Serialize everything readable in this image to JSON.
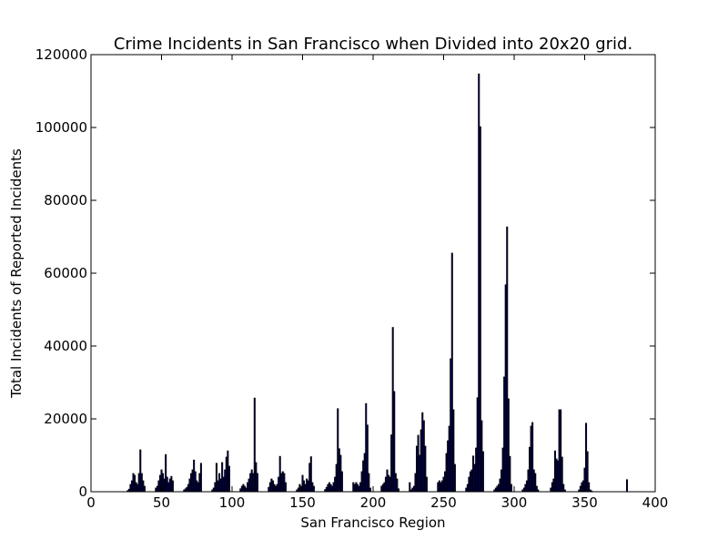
{
  "colors": {
    "bar_fill": "#00008b",
    "bar_edge": "#000000",
    "background": "#ffffff",
    "axis": "#000000"
  },
  "chart_data": {
    "type": "bar",
    "title": "Crime Incidents in San Francisco when Divided into 20x20 grid.",
    "xlabel": "San Francisco Region",
    "ylabel": "Total Incidents of Reported Incidents",
    "xlim": [
      0,
      400
    ],
    "ylim": [
      0,
      120000
    ],
    "x_ticks": [
      "0",
      "50",
      "100",
      "150",
      "200",
      "250",
      "300",
      "350",
      "400"
    ],
    "y_ticks": [
      "0",
      "20000",
      "40000",
      "60000",
      "80000",
      "100000",
      "120000"
    ],
    "grid": false,
    "legend": "none",
    "x": [
      26,
      27,
      28,
      29,
      30,
      31,
      32,
      33,
      34,
      35,
      36,
      37,
      38,
      46,
      47,
      48,
      49,
      50,
      51,
      52,
      53,
      54,
      55,
      56,
      57,
      58,
      66,
      67,
      68,
      69,
      70,
      71,
      72,
      73,
      74,
      75,
      76,
      77,
      78,
      86,
      87,
      88,
      89,
      90,
      91,
      92,
      93,
      94,
      95,
      96,
      97,
      98,
      106,
      107,
      108,
      109,
      110,
      111,
      112,
      113,
      114,
      115,
      116,
      117,
      118,
      126,
      127,
      128,
      129,
      130,
      131,
      132,
      133,
      134,
      135,
      136,
      137,
      138,
      146,
      147,
      148,
      149,
      150,
      151,
      152,
      153,
      154,
      155,
      156,
      157,
      158,
      166,
      167,
      168,
      169,
      170,
      171,
      172,
      173,
      174,
      175,
      176,
      177,
      178,
      186,
      187,
      188,
      189,
      190,
      191,
      192,
      193,
      194,
      195,
      196,
      197,
      198,
      206,
      207,
      208,
      209,
      210,
      211,
      212,
      213,
      214,
      215,
      216,
      217,
      218,
      226,
      227,
      228,
      229,
      230,
      231,
      232,
      233,
      234,
      235,
      236,
      237,
      238,
      246,
      247,
      248,
      249,
      250,
      251,
      252,
      253,
      254,
      255,
      256,
      257,
      258,
      266,
      267,
      268,
      269,
      270,
      271,
      272,
      273,
      274,
      275,
      276,
      277,
      278,
      286,
      287,
      288,
      289,
      290,
      291,
      292,
      293,
      294,
      295,
      296,
      297,
      298,
      306,
      307,
      308,
      309,
      310,
      311,
      312,
      313,
      314,
      315,
      316,
      317,
      326,
      327,
      328,
      329,
      330,
      331,
      332,
      333,
      334,
      335,
      336,
      346,
      347,
      348,
      349,
      350,
      351,
      352,
      353,
      354,
      355,
      380
    ],
    "values": [
      300,
      700,
      2000,
      3000,
      5000,
      4500,
      2500,
      2000,
      5000,
      11500,
      5000,
      3000,
      1500,
      1000,
      1500,
      3000,
      4500,
      6000,
      5000,
      3500,
      10200,
      4000,
      2500,
      3500,
      4200,
      3000,
      500,
      800,
      1200,
      2000,
      3500,
      5000,
      6000,
      8700,
      5500,
      3000,
      2500,
      5000,
      7800,
      500,
      1000,
      2500,
      7800,
      3000,
      5000,
      3500,
      8000,
      4000,
      6000,
      9500,
      11200,
      7000,
      800,
      1500,
      2000,
      1500,
      1000,
      2500,
      3500,
      5000,
      6000,
      5000,
      25700,
      8000,
      5000,
      1200,
      2500,
      3500,
      3000,
      2000,
      1500,
      2000,
      4000,
      9700,
      5000,
      5500,
      5000,
      2500,
      500,
      1000,
      2000,
      1500,
      4500,
      3000,
      2000,
      3500,
      3000,
      7800,
      9600,
      2500,
      1500,
      600,
      1200,
      2000,
      2500,
      2000,
      1500,
      2500,
      4000,
      7500,
      22800,
      11800,
      10000,
      5500,
      2500,
      2000,
      2500,
      2000,
      1500,
      2500,
      5500,
      8500,
      10500,
      24200,
      18300,
      5000,
      1000,
      1500,
      2000,
      2500,
      4000,
      6000,
      4500,
      4000,
      15600,
      45100,
      27500,
      5000,
      3500,
      800,
      2500,
      500,
      1000,
      1500,
      5000,
      12500,
      15500,
      10000,
      17000,
      21700,
      19500,
      12500,
      4000,
      2500,
      3000,
      2500,
      3000,
      4000,
      5500,
      10500,
      14000,
      18000,
      36500,
      65500,
      22500,
      7500,
      1000,
      2000,
      4000,
      5500,
      6000,
      9800,
      7500,
      12000,
      25800,
      114700,
      100200,
      19500,
      11000,
      500,
      1000,
      1500,
      2000,
      3500,
      6000,
      12000,
      31500,
      56800,
      72700,
      25500,
      9700,
      2000,
      500,
      1000,
      2000,
      3000,
      6000,
      12200,
      18000,
      19000,
      6000,
      5000,
      1500,
      500,
      1000,
      2500,
      3500,
      11200,
      9000,
      8500,
      22500,
      22500,
      9500,
      2000,
      500,
      500,
      1500,
      2500,
      3000,
      6500,
      18800,
      11000,
      2500,
      500,
      200,
      3300
    ]
  }
}
